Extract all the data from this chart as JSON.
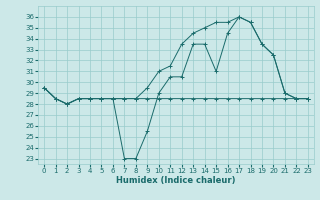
{
  "xlabel": "Humidex (Indice chaleur)",
  "bg_color": "#cce8e8",
  "grid_color": "#99cccc",
  "line_color": "#1a6b6b",
  "xlim": [
    -0.5,
    23.5
  ],
  "ylim": [
    22.5,
    37.0
  ],
  "xticks": [
    0,
    1,
    2,
    3,
    4,
    5,
    6,
    7,
    8,
    9,
    10,
    11,
    12,
    13,
    14,
    15,
    16,
    17,
    18,
    19,
    20,
    21,
    22,
    23
  ],
  "yticks": [
    23,
    24,
    25,
    26,
    27,
    28,
    29,
    30,
    31,
    32,
    33,
    34,
    35,
    36
  ],
  "line_flat_x": [
    0,
    1,
    2,
    3,
    4,
    5,
    6,
    7,
    8,
    9,
    10,
    11,
    12,
    13,
    14,
    15,
    16,
    17,
    18,
    19,
    20,
    21,
    22,
    23
  ],
  "line_flat_y": [
    29.5,
    28.5,
    28.0,
    28.5,
    28.5,
    28.5,
    28.5,
    28.5,
    28.5,
    28.5,
    28.5,
    28.5,
    28.5,
    28.5,
    28.5,
    28.5,
    28.5,
    28.5,
    28.5,
    28.5,
    28.5,
    28.5,
    28.5,
    28.5
  ],
  "line_dip_x": [
    0,
    1,
    2,
    3,
    4,
    5,
    6,
    7,
    8,
    9,
    10,
    11,
    12,
    13,
    14,
    15,
    16,
    17,
    18,
    19,
    20,
    21,
    22,
    23
  ],
  "line_dip_y": [
    29.5,
    28.5,
    28.0,
    28.5,
    28.5,
    28.5,
    28.5,
    23.0,
    23.0,
    25.5,
    29.0,
    30.5,
    30.5,
    33.5,
    33.5,
    31.0,
    34.5,
    36.0,
    35.5,
    33.5,
    32.5,
    29.0,
    28.5,
    28.5
  ],
  "line_rise_x": [
    0,
    1,
    2,
    3,
    4,
    5,
    6,
    7,
    8,
    9,
    10,
    11,
    12,
    13,
    14,
    15,
    16,
    17,
    18,
    19,
    20,
    21,
    22,
    23
  ],
  "line_rise_y": [
    29.5,
    28.5,
    28.0,
    28.5,
    28.5,
    28.5,
    28.5,
    28.5,
    28.5,
    29.5,
    31.0,
    31.5,
    33.5,
    34.5,
    35.0,
    35.5,
    35.5,
    36.0,
    35.5,
    33.5,
    32.5,
    29.0,
    28.5,
    28.5
  ],
  "tick_fontsize": 5,
  "xlabel_fontsize": 6,
  "lw": 0.7,
  "ms": 2.5
}
